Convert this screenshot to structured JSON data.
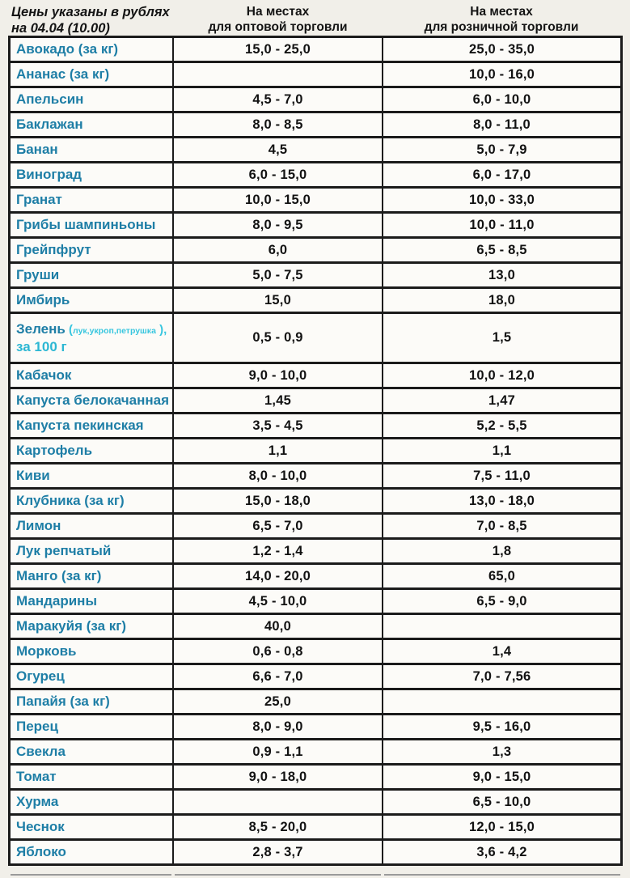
{
  "header": {
    "title_line1": "Цены указаны в рублях",
    "title_line2": "на 04.04 (10.00)",
    "col_wholesale_line1": "На местах",
    "col_wholesale_line2": "для оптовой торговли",
    "col_retail_line1": "На местах",
    "col_retail_line2": "для розничной торговли"
  },
  "colors": {
    "page_bg": "#f1efe9",
    "cell_bg": "#fcfbf8",
    "border": "#1b1b1b",
    "product_name": "#1e7ea6",
    "note_cyan": "#38c6df",
    "unit_cyan": "#2cb7d3",
    "value_text": "#121212"
  },
  "table": {
    "columns": [
      "product",
      "wholesale",
      "retail"
    ],
    "rows": [
      {
        "name": "Авокадо (за кг)",
        "wholesale": "15,0 - 25,0",
        "retail": "25,0 - 35,0"
      },
      {
        "name": "Ананас (за кг)",
        "wholesale": "",
        "retail": "10,0 - 16,0"
      },
      {
        "name": "Апельсин",
        "wholesale": "4,5 - 7,0",
        "retail": "6,0 - 10,0"
      },
      {
        "name": "Баклажан",
        "wholesale": "8,0 - 8,5",
        "retail": "8,0 - 11,0"
      },
      {
        "name": "Банан",
        "wholesale": "4,5",
        "retail": "5,0 - 7,9"
      },
      {
        "name": "Виноград",
        "wholesale": "6,0 - 15,0",
        "retail": "6,0 - 17,0"
      },
      {
        "name": "Гранат",
        "wholesale": "10,0 - 15,0",
        "retail": "10,0 - 33,0"
      },
      {
        "name": "Грибы шампиньоны",
        "wholesale": "8,0 - 9,5",
        "retail": "10,0 - 11,0"
      },
      {
        "name": "Грейпфрут",
        "wholesale": "6,0",
        "retail": "6,5 - 8,5"
      },
      {
        "name": "Груши",
        "wholesale": "5,0 - 7,5",
        "retail": "13,0"
      },
      {
        "name": "Имбирь",
        "wholesale": "15,0",
        "retail": "18,0"
      },
      {
        "name": "Зелень",
        "note_open": "(",
        "note_text": "лук,укроп,петрушка",
        "note_close": " ),",
        "name_line2": "за 100 г",
        "tall": true,
        "wholesale": "0,5 - 0,9",
        "retail": "1,5"
      },
      {
        "name": "Кабачок",
        "wholesale": "9,0 - 10,0",
        "retail": "10,0 - 12,0"
      },
      {
        "name": "Капуста белокачанная",
        "wholesale": "1,45",
        "retail": "1,47"
      },
      {
        "name": "Капуста пекинская",
        "wholesale": "3,5 - 4,5",
        "retail": "5,2 - 5,5"
      },
      {
        "name": "Картофель",
        "wholesale": "1,1",
        "retail": "1,1"
      },
      {
        "name": "Киви",
        "wholesale": "8,0 - 10,0",
        "retail": "7,5 - 11,0"
      },
      {
        "name": "Клубника (за кг)",
        "wholesale": "15,0 - 18,0",
        "retail": "13,0 - 18,0"
      },
      {
        "name": "Лимон",
        "wholesale": "6,5 - 7,0",
        "retail": "7,0 - 8,5"
      },
      {
        "name": "Лук репчатый",
        "wholesale": "1,2 - 1,4",
        "retail": "1,8"
      },
      {
        "name": "Манго (за кг)",
        "wholesale": "14,0 - 20,0",
        "retail": "65,0"
      },
      {
        "name": "Мандарины",
        "wholesale": "4,5 - 10,0",
        "retail": "6,5 - 9,0"
      },
      {
        "name": "Маракуйя (за кг)",
        "wholesale": "40,0",
        "retail": ""
      },
      {
        "name": "Морковь",
        "wholesale": "0,6 - 0,8",
        "retail": "1,4"
      },
      {
        "name": "Огурец",
        "wholesale": "6,6 - 7,0",
        "retail": "7,0 - 7,56"
      },
      {
        "name": "Папайя (за кг)",
        "wholesale": "25,0",
        "retail": ""
      },
      {
        "name": "Перец",
        "wholesale": "8,0 - 9,0",
        "retail": "9,5 - 16,0"
      },
      {
        "name": "Свекла",
        "wholesale": "0,9 - 1,1",
        "retail": "1,3"
      },
      {
        "name": "Томат",
        "wholesale": "9,0 - 18,0",
        "retail": "9,0 - 15,0"
      },
      {
        "name": "Хурма",
        "wholesale": "",
        "retail": "6,5 - 10,0"
      },
      {
        "name": "Чеснок",
        "wholesale": "8,5 - 20,0",
        "retail": "12,0 - 15,0"
      },
      {
        "name": "Яблоко",
        "wholesale": "2,8 - 3,7",
        "retail": "3,6 - 4,2"
      }
    ]
  }
}
